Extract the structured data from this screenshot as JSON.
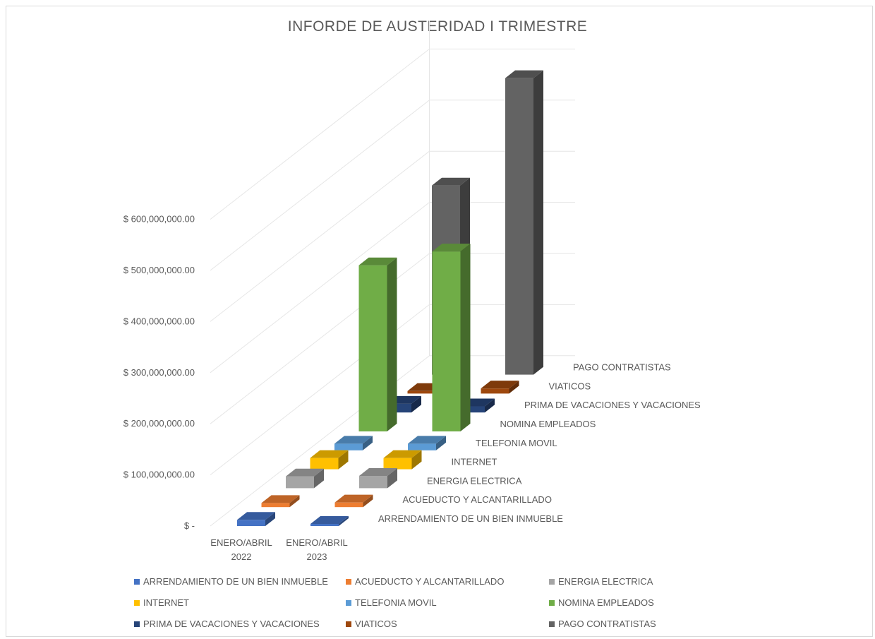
{
  "chart_data": {
    "type": "bar",
    "title": "INFORDE DE AUSTERIDAD I TRIMESTRE",
    "categories": [
      "ENERO/ABRIL 2022",
      "ENERO/ABRIL 2023"
    ],
    "category_lines": [
      [
        "ENERO/ABRIL",
        "2022"
      ],
      [
        "ENERO/ABRIL",
        "2023"
      ]
    ],
    "y_tick_labels": [
      "$ -",
      "$ 100,000,000.00",
      "$ 200,000,000.00",
      "$ 300,000,000.00",
      "$ 400,000,000.00",
      "$ 500,000,000.00",
      "$ 600,000,000.00"
    ],
    "ylim": [
      0,
      600000000
    ],
    "grid": true,
    "legend_position": "bottom",
    "series": [
      {
        "name": "ARRENDAMIENTO DE UN BIEN INMUEBLE",
        "color": "#4472C4",
        "values": [
          12000000,
          3000000
        ]
      },
      {
        "name": "ACUEDUCTO Y ALCANTARILLADO",
        "color": "#ED7D31",
        "values": [
          8000000,
          9000000
        ]
      },
      {
        "name": "ENERGIA ELECTRICA",
        "color": "#A5A5A5",
        "values": [
          23000000,
          24000000
        ]
      },
      {
        "name": "INTERNET",
        "color": "#FFC000",
        "values": [
          22000000,
          22000000
        ]
      },
      {
        "name": "TELEFONIA MOVIL",
        "color": "#5B9BD5",
        "values": [
          13000000,
          13000000
        ]
      },
      {
        "name": "NOMINA EMPLEADOS",
        "color": "#70AD47",
        "values": [
          325000000,
          352000000
        ]
      },
      {
        "name": "PRIMA DE VACACIONES Y VACACIONES",
        "color": "#264478",
        "values": [
          17000000,
          12000000
        ]
      },
      {
        "name": "VIATICOS",
        "color": "#9E480E",
        "values": [
          5000000,
          10000000
        ]
      },
      {
        "name": "PAGO CONTRATISTAS",
        "color": "#636363",
        "values": [
          370000000,
          580000000
        ]
      }
    ]
  }
}
